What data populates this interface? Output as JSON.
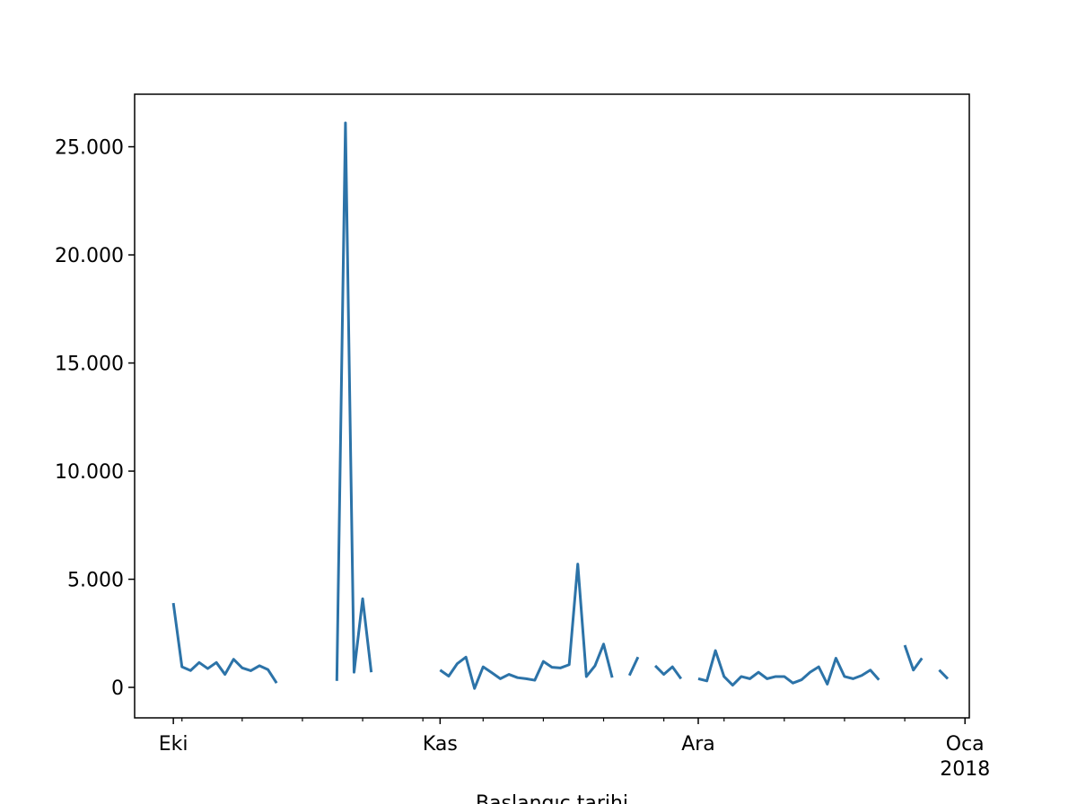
{
  "chart_data": {
    "type": "line",
    "xlabel": "Başlangıç tarihi",
    "x": [
      0,
      1,
      2,
      3,
      4,
      5,
      6,
      7,
      8,
      9,
      10,
      11,
      12,
      13,
      14,
      15,
      16,
      17,
      18,
      19,
      20,
      21,
      22,
      23,
      24,
      25,
      26,
      27,
      28,
      29,
      30,
      31,
      32,
      33,
      34,
      35,
      36,
      37,
      38,
      39,
      40,
      41,
      42,
      43,
      44,
      45,
      46,
      47,
      48,
      49,
      50,
      51,
      52,
      53,
      54,
      55,
      56,
      57,
      58,
      59,
      60,
      61,
      62,
      63,
      64,
      65,
      66,
      67,
      68,
      69,
      70,
      71,
      72,
      73,
      74,
      75,
      76,
      77,
      78,
      79,
      80,
      81,
      82,
      83,
      84,
      85,
      86,
      87,
      88,
      89,
      90
    ],
    "series": [
      {
        "color": "#2c73a8",
        "values": [
          3900,
          950,
          780,
          1150,
          870,
          1150,
          600,
          1300,
          900,
          770,
          1000,
          820,
          200,
          null,
          null,
          null,
          null,
          null,
          null,
          300,
          26100,
          700,
          4100,
          700,
          null,
          null,
          null,
          null,
          null,
          null,
          null,
          800,
          520,
          1100,
          1400,
          -50,
          950,
          680,
          400,
          600,
          450,
          400,
          330,
          1200,
          930,
          900,
          1050,
          5700,
          500,
          1000,
          2000,
          450,
          null,
          550,
          1400,
          null,
          1000,
          600,
          950,
          400,
          null,
          400,
          300,
          1700,
          500,
          100,
          500,
          400,
          700,
          400,
          500,
          500,
          200,
          350,
          700,
          950,
          150,
          1350,
          500,
          400,
          550,
          800,
          350,
          null,
          null,
          1950,
          800,
          1350,
          null,
          800,
          400
        ]
      }
    ],
    "xlim": [
      -4.5,
      92.5
    ],
    "xticks": [
      {
        "value": 0,
        "label": "Eki"
      },
      {
        "value": 31,
        "label": "Kas"
      },
      {
        "value": 61,
        "label": "Ara"
      },
      {
        "value": 92,
        "label": "Oca\n2018"
      }
    ],
    "xminorticks": [
      1,
      8,
      15,
      22,
      29,
      36,
      43,
      50,
      57,
      64,
      71,
      78,
      85
    ],
    "ylim": [
      -1410,
      27430
    ],
    "yticks": [
      0,
      {
        "value": 5000,
        "label": "5.000"
      },
      {
        "value": 10000,
        "label": "10.000"
      },
      {
        "value": 15000,
        "label": "15.000"
      },
      {
        "value": 20000,
        "label": "20.000"
      },
      {
        "value": 25000,
        "label": "25.000"
      }
    ]
  }
}
